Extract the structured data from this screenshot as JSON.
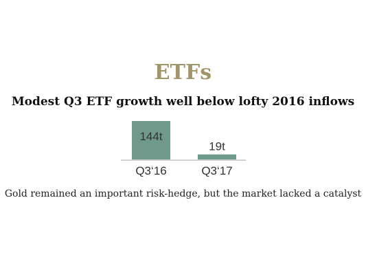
{
  "colors": {
    "heading": "#a3956a",
    "bar": "#6f9a8a",
    "axis": "#cfcfcf"
  },
  "heading": "ETFs",
  "subheading": "Modest Q3 ETF growth well below lofty 2016 inflows",
  "caption": "Gold remained an important risk-hedge, but the market lacked a catalyst",
  "chart_data": {
    "type": "bar",
    "categories": [
      "Q3‘16",
      "Q3‘17"
    ],
    "values": [
      144,
      19
    ],
    "data_labels": [
      "144t",
      "19t"
    ],
    "unit": "t",
    "ylim": [
      0,
      144
    ],
    "grid": false,
    "legend": "none"
  }
}
